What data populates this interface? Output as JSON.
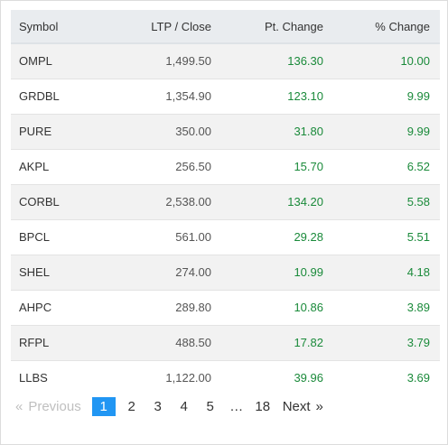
{
  "table": {
    "headers": {
      "symbol": "Symbol",
      "ltp": "LTP / Close",
      "pt_change": "Pt. Change",
      "pct_change": "% Change"
    },
    "rows": [
      {
        "symbol": "OMPL",
        "ltp": "1,499.50",
        "pt_change": "136.30",
        "pct_change": "10.00"
      },
      {
        "symbol": "GRDBL",
        "ltp": "1,354.90",
        "pt_change": "123.10",
        "pct_change": "9.99"
      },
      {
        "symbol": "PURE",
        "ltp": "350.00",
        "pt_change": "31.80",
        "pct_change": "9.99"
      },
      {
        "symbol": "AKPL",
        "ltp": "256.50",
        "pt_change": "15.70",
        "pct_change": "6.52"
      },
      {
        "symbol": "CORBL",
        "ltp": "2,538.00",
        "pt_change": "134.20",
        "pct_change": "5.58"
      },
      {
        "symbol": "BPCL",
        "ltp": "561.00",
        "pt_change": "29.28",
        "pct_change": "5.51"
      },
      {
        "symbol": "SHEL",
        "ltp": "274.00",
        "pt_change": "10.99",
        "pct_change": "4.18"
      },
      {
        "symbol": "AHPC",
        "ltp": "289.80",
        "pt_change": "10.86",
        "pct_change": "3.89"
      },
      {
        "symbol": "RFPL",
        "ltp": "488.50",
        "pt_change": "17.82",
        "pct_change": "3.79"
      },
      {
        "symbol": "LLBS",
        "ltp": "1,122.00",
        "pt_change": "39.96",
        "pct_change": "3.69"
      }
    ]
  },
  "pagination": {
    "prev_arrow": "«",
    "prev_label": "Previous",
    "pages": [
      "1",
      "2",
      "3",
      "4",
      "5"
    ],
    "active_page": "1",
    "ellipsis": "…",
    "last_page": "18",
    "next_label": "Next",
    "next_arrow": "»"
  },
  "colors": {
    "positive": "#1a8a3a",
    "active_page_bg": "#2196f3",
    "header_bg": "#e9ecef",
    "stripe": "#f2f2f2"
  }
}
